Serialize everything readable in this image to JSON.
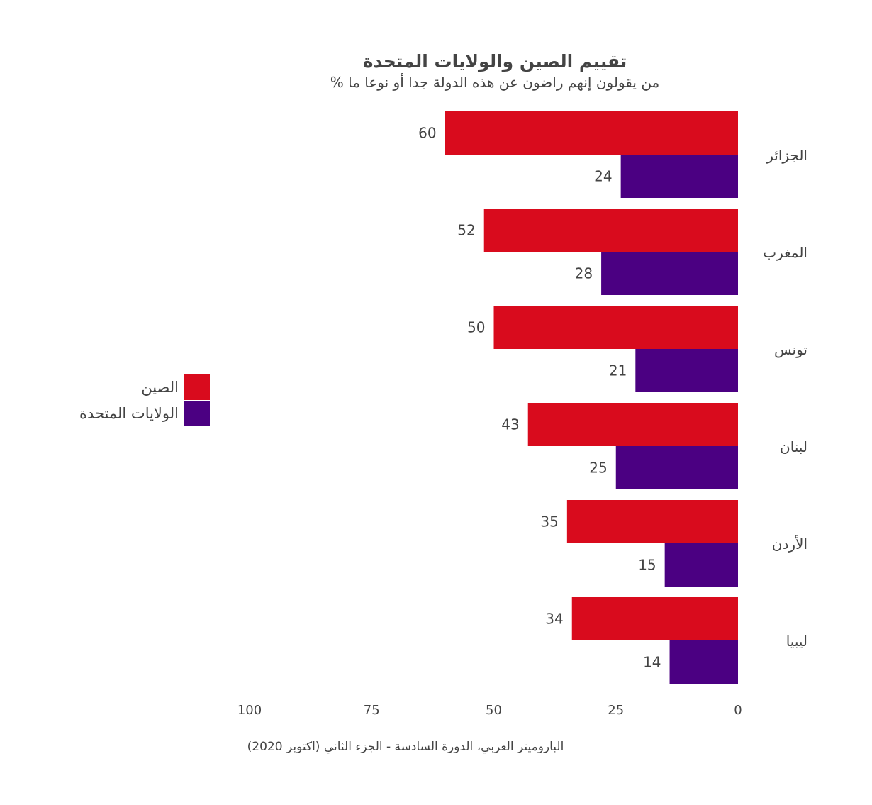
{
  "chart_data": {
    "type": "bar",
    "orientation": "horizontal",
    "direction": "rtl",
    "title": "تقييم الصين والولايات المتحدة",
    "subtitle": "% من يقولون إنهم راضون عن هذه الدولة جدا أو نوعا ما",
    "categories": [
      "الجزائر",
      "المغرب",
      "تونس",
      "لبنان",
      "الأردن",
      "ليبيا"
    ],
    "series": [
      {
        "name": "الصين",
        "color": "#d90b1d",
        "values": [
          60,
          52,
          50,
          43,
          35,
          34
        ]
      },
      {
        "name": "الولايات المتحدة",
        "color": "#4b0082",
        "values": [
          24,
          28,
          21,
          25,
          15,
          14
        ]
      }
    ],
    "xlim": [
      0,
      100
    ],
    "xticks": [
      "0",
      "25",
      "50",
      "75",
      "100"
    ],
    "grid": false,
    "legend_position": "left",
    "source": "الباروميتر العربي، الدورة السادسة - الجزء الثاني (اكتوبر 2020)"
  }
}
